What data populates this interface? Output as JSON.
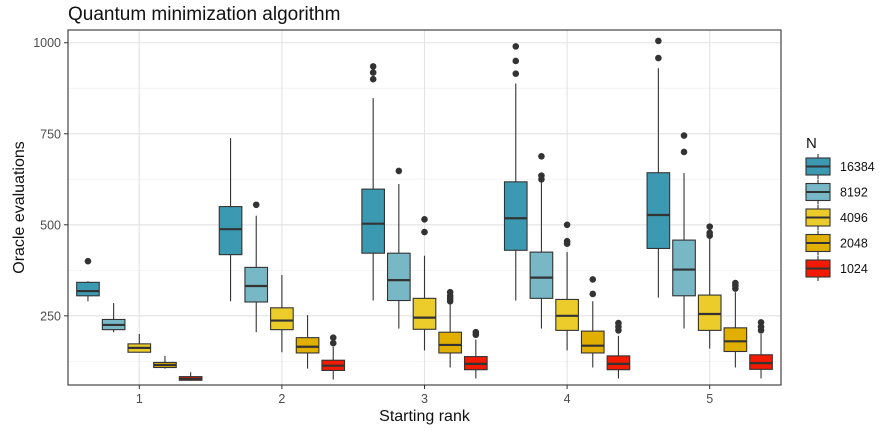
{
  "chart_data": {
    "type": "boxplot",
    "title": "Quantum minimization algorithm",
    "xlabel": "Starting rank",
    "ylabel": "Oracle evaluations",
    "categories": [
      "1",
      "2",
      "3",
      "4",
      "5"
    ],
    "ylim": [
      60,
      1035
    ],
    "yticks": [
      250,
      500,
      750,
      1000
    ],
    "grid": true,
    "legend": {
      "title": "N",
      "position": "right"
    },
    "series": [
      {
        "name": "16384",
        "color": "#3B9AB2",
        "boxes": [
          {
            "min": 290,
            "q1": 305,
            "median": 318,
            "q3": 342,
            "max": 345,
            "outliers": [
              400
            ]
          },
          {
            "min": 290,
            "q1": 418,
            "median": 488,
            "q3": 550,
            "max": 738,
            "outliers": []
          },
          {
            "min": 292,
            "q1": 422,
            "median": 503,
            "q3": 598,
            "max": 848,
            "outliers": [
              900,
              918,
              935
            ]
          },
          {
            "min": 292,
            "q1": 430,
            "median": 518,
            "q3": 618,
            "max": 888,
            "outliers": [
              915,
              950,
              990
            ]
          },
          {
            "min": 300,
            "q1": 435,
            "median": 527,
            "q3": 643,
            "max": 930,
            "outliers": [
              958,
              1005
            ]
          }
        ]
      },
      {
        "name": "8192",
        "color": "#78B7C5",
        "boxes": [
          {
            "min": 205,
            "q1": 212,
            "median": 225,
            "q3": 240,
            "max": 285,
            "outliers": []
          },
          {
            "min": 205,
            "q1": 288,
            "median": 332,
            "q3": 383,
            "max": 525,
            "outliers": [
              555
            ]
          },
          {
            "min": 215,
            "q1": 292,
            "median": 348,
            "q3": 422,
            "max": 612,
            "outliers": [
              648
            ]
          },
          {
            "min": 215,
            "q1": 298,
            "median": 355,
            "q3": 425,
            "max": 618,
            "outliers": [
              625,
              635,
              688
            ]
          },
          {
            "min": 215,
            "q1": 305,
            "median": 377,
            "q3": 458,
            "max": 642,
            "outliers": [
              700,
              745
            ]
          }
        ]
      },
      {
        "name": "4096",
        "color": "#EBCC2A",
        "boxes": [
          {
            "min": 150,
            "q1": 150,
            "median": 162,
            "q3": 173,
            "max": 200,
            "outliers": []
          },
          {
            "min": 150,
            "q1": 212,
            "median": 237,
            "q3": 272,
            "max": 362,
            "outliers": []
          },
          {
            "min": 155,
            "q1": 213,
            "median": 245,
            "q3": 298,
            "max": 415,
            "outliers": [
              480,
              515
            ]
          },
          {
            "min": 155,
            "q1": 210,
            "median": 250,
            "q3": 295,
            "max": 425,
            "outliers": [
              448,
              455,
              500
            ]
          },
          {
            "min": 160,
            "q1": 210,
            "median": 255,
            "q3": 307,
            "max": 462,
            "outliers": [
              470,
              478,
              495
            ]
          }
        ]
      },
      {
        "name": "2048",
        "color": "#E1AF00",
        "boxes": [
          {
            "min": 105,
            "q1": 108,
            "median": 115,
            "q3": 122,
            "max": 140,
            "outliers": []
          },
          {
            "min": 105,
            "q1": 148,
            "median": 165,
            "q3": 190,
            "max": 252,
            "outliers": []
          },
          {
            "min": 108,
            "q1": 148,
            "median": 170,
            "q3": 205,
            "max": 282,
            "outliers": [
              290,
              298,
              305,
              315
            ]
          },
          {
            "min": 108,
            "q1": 148,
            "median": 168,
            "q3": 208,
            "max": 290,
            "outliers": [
              310,
              350
            ]
          },
          {
            "min": 108,
            "q1": 152,
            "median": 180,
            "q3": 217,
            "max": 315,
            "outliers": [
              325,
              333,
              340
            ]
          }
        ]
      },
      {
        "name": "1024",
        "color": "#F21A00",
        "boxes": [
          {
            "min": 72,
            "q1": 73,
            "median": 77,
            "q3": 83,
            "max": 95,
            "outliers": []
          },
          {
            "min": 75,
            "q1": 100,
            "median": 113,
            "q3": 128,
            "max": 165,
            "outliers": [
              175,
              190
            ]
          },
          {
            "min": 78,
            "q1": 102,
            "median": 118,
            "q3": 138,
            "max": 185,
            "outliers": [
              198,
              205
            ]
          },
          {
            "min": 78,
            "q1": 102,
            "median": 118,
            "q3": 140,
            "max": 195,
            "outliers": [
              210,
              220,
              230
            ]
          },
          {
            "min": 78,
            "q1": 103,
            "median": 120,
            "q3": 143,
            "max": 200,
            "outliers": [
              210,
              220,
              232
            ]
          }
        ]
      }
    ]
  }
}
